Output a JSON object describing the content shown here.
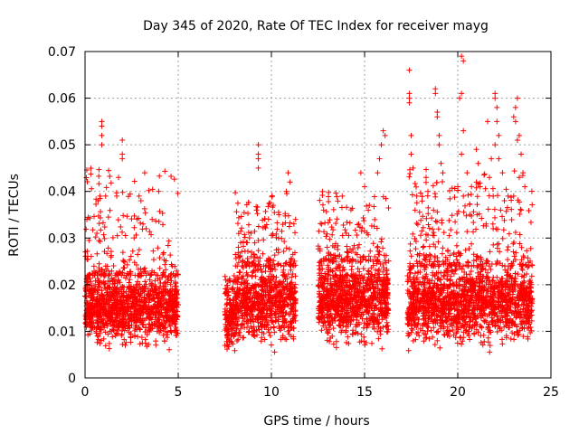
{
  "chart_data": {
    "type": "scatter",
    "title": "Day 345 of 2020, Rate Of TEC Index for receiver mayg",
    "xlabel": "GPS time / hours",
    "ylabel": "ROTI / TECUs",
    "xlim": [
      0,
      25
    ],
    "ylim": [
      0,
      0.07
    ],
    "x_ticks": [
      0,
      5,
      10,
      15,
      20,
      25
    ],
    "y_ticks": [
      0,
      0.01,
      0.02,
      0.03,
      0.04,
      0.05,
      0.06,
      0.07
    ],
    "x_tick_labels": [
      "0",
      "5",
      "10",
      "15",
      "20",
      "25"
    ],
    "y_tick_labels": [
      "0",
      "0.01",
      "0.02",
      "0.03",
      "0.04",
      "0.05",
      "0.06",
      "0.07"
    ],
    "grid": true,
    "marker": "plus",
    "marker_color": "#ff0000",
    "series": [
      {
        "name": "ROTI",
        "segments": [
          {
            "x_range": [
              0,
              5.0
            ],
            "base": [
              0.005,
              0.022
            ],
            "spike_max": 0.045,
            "density": 1400
          },
          {
            "x_range": [
              7.5,
              8.0
            ],
            "base": [
              0.004,
              0.018
            ],
            "spike_max": 0.022,
            "density": 150
          },
          {
            "x_range": [
              8.0,
              11.3
            ],
            "base": [
              0.005,
              0.024
            ],
            "spike_max": 0.04,
            "density": 900
          },
          {
            "x_range": [
              12.5,
              16.3
            ],
            "base": [
              0.005,
              0.025
            ],
            "spike_max": 0.04,
            "density": 1100
          },
          {
            "x_range": [
              17.3,
              24.0
            ],
            "base": [
              0.005,
              0.024
            ],
            "spike_max": 0.045,
            "density": 1800
          }
        ],
        "points": [
          {
            "x": 0.9,
            "y": 0.055
          },
          {
            "x": 0.9,
            "y": 0.054
          },
          {
            "x": 0.9,
            "y": 0.052
          },
          {
            "x": 0.9,
            "y": 0.05
          },
          {
            "x": 0.8,
            "y": 0.039
          },
          {
            "x": 0.7,
            "y": 0.038
          },
          {
            "x": 2.0,
            "y": 0.051
          },
          {
            "x": 2.0,
            "y": 0.048
          },
          {
            "x": 2.0,
            "y": 0.047
          },
          {
            "x": 1.8,
            "y": 0.043
          },
          {
            "x": 1.7,
            "y": 0.039
          },
          {
            "x": 3.2,
            "y": 0.044
          },
          {
            "x": 2.9,
            "y": 0.039
          },
          {
            "x": 3.0,
            "y": 0.038
          },
          {
            "x": 0.1,
            "y": 0.034
          },
          {
            "x": 3.6,
            "y": 0.034
          },
          {
            "x": 9.3,
            "y": 0.05
          },
          {
            "x": 9.3,
            "y": 0.048
          },
          {
            "x": 9.3,
            "y": 0.047
          },
          {
            "x": 9.3,
            "y": 0.045
          },
          {
            "x": 9.2,
            "y": 0.036
          },
          {
            "x": 10.9,
            "y": 0.044
          },
          {
            "x": 11.0,
            "y": 0.042
          },
          {
            "x": 10.8,
            "y": 0.04
          },
          {
            "x": 10.1,
            "y": 0.037
          },
          {
            "x": 10.4,
            "y": 0.035
          },
          {
            "x": 14.8,
            "y": 0.044
          },
          {
            "x": 15.0,
            "y": 0.041
          },
          {
            "x": 13.8,
            "y": 0.039
          },
          {
            "x": 16.0,
            "y": 0.053
          },
          {
            "x": 16.1,
            "y": 0.052
          },
          {
            "x": 15.9,
            "y": 0.05
          },
          {
            "x": 15.8,
            "y": 0.047
          },
          {
            "x": 15.7,
            "y": 0.044
          },
          {
            "x": 12.8,
            "y": 0.036
          },
          {
            "x": 15.2,
            "y": 0.036
          },
          {
            "x": 17.4,
            "y": 0.066
          },
          {
            "x": 17.4,
            "y": 0.061
          },
          {
            "x": 17.4,
            "y": 0.06
          },
          {
            "x": 17.4,
            "y": 0.059
          },
          {
            "x": 17.5,
            "y": 0.052
          },
          {
            "x": 17.5,
            "y": 0.048
          },
          {
            "x": 17.6,
            "y": 0.045
          },
          {
            "x": 17.8,
            "y": 0.039
          },
          {
            "x": 18.3,
            "y": 0.043
          },
          {
            "x": 18.4,
            "y": 0.04
          },
          {
            "x": 18.8,
            "y": 0.062
          },
          {
            "x": 18.8,
            "y": 0.061
          },
          {
            "x": 18.9,
            "y": 0.057
          },
          {
            "x": 18.9,
            "y": 0.056
          },
          {
            "x": 19.0,
            "y": 0.052
          },
          {
            "x": 19.0,
            "y": 0.05
          },
          {
            "x": 19.1,
            "y": 0.046
          },
          {
            "x": 19.2,
            "y": 0.044
          },
          {
            "x": 18.7,
            "y": 0.036
          },
          {
            "x": 20.2,
            "y": 0.069
          },
          {
            "x": 20.3,
            "y": 0.068
          },
          {
            "x": 20.2,
            "y": 0.061
          },
          {
            "x": 20.1,
            "y": 0.06
          },
          {
            "x": 20.3,
            "y": 0.053
          },
          {
            "x": 20.2,
            "y": 0.048
          },
          {
            "x": 20.5,
            "y": 0.044
          },
          {
            "x": 20.3,
            "y": 0.039
          },
          {
            "x": 20.0,
            "y": 0.041
          },
          {
            "x": 21.0,
            "y": 0.049
          },
          {
            "x": 21.1,
            "y": 0.046
          },
          {
            "x": 21.0,
            "y": 0.042
          },
          {
            "x": 21.2,
            "y": 0.041
          },
          {
            "x": 21.6,
            "y": 0.055
          },
          {
            "x": 21.8,
            "y": 0.047
          },
          {
            "x": 21.7,
            "y": 0.043
          },
          {
            "x": 21.9,
            "y": 0.039
          },
          {
            "x": 22.0,
            "y": 0.061
          },
          {
            "x": 22.0,
            "y": 0.06
          },
          {
            "x": 22.1,
            "y": 0.058
          },
          {
            "x": 22.1,
            "y": 0.055
          },
          {
            "x": 22.2,
            "y": 0.052
          },
          {
            "x": 22.0,
            "y": 0.05
          },
          {
            "x": 22.2,
            "y": 0.047
          },
          {
            "x": 22.4,
            "y": 0.044
          },
          {
            "x": 22.3,
            "y": 0.036
          },
          {
            "x": 23.2,
            "y": 0.06
          },
          {
            "x": 23.1,
            "y": 0.058
          },
          {
            "x": 23.0,
            "y": 0.056
          },
          {
            "x": 23.1,
            "y": 0.055
          },
          {
            "x": 23.3,
            "y": 0.052
          },
          {
            "x": 23.2,
            "y": 0.051
          },
          {
            "x": 23.4,
            "y": 0.048
          },
          {
            "x": 23.5,
            "y": 0.044
          },
          {
            "x": 23.3,
            "y": 0.043
          },
          {
            "x": 23.6,
            "y": 0.041
          },
          {
            "x": 23.0,
            "y": 0.039
          },
          {
            "x": 23.4,
            "y": 0.036
          },
          {
            "x": 22.7,
            "y": 0.039
          },
          {
            "x": 22.5,
            "y": 0.038
          }
        ]
      }
    ]
  }
}
